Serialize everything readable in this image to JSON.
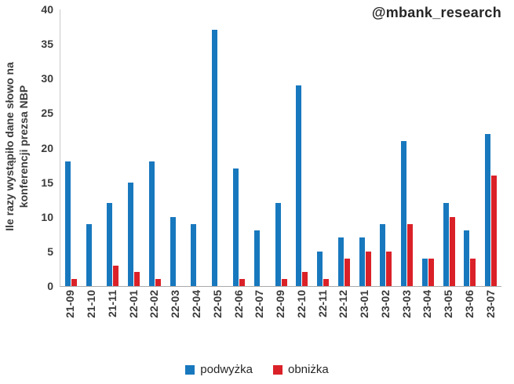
{
  "watermark": "@mbank_research",
  "chart_data": {
    "type": "bar",
    "title": "",
    "xlabel": "",
    "ylabel": "Ile razy wystąpiło dane słowo na konferencji prezsa NBP",
    "ylabel_lines": [
      "Ile razy wystąpiło dane słowo na",
      "konferencji prezsa NBP"
    ],
    "ylim": [
      0,
      40
    ],
    "yticks": [
      0,
      5,
      10,
      15,
      20,
      25,
      30,
      35,
      40
    ],
    "grid": false,
    "legend_position": "bottom",
    "categories": [
      "21-09",
      "21-10",
      "21-11",
      "22-01",
      "22-02",
      "22-03",
      "22-04",
      "22-05",
      "22-06",
      "22-07",
      "22-09",
      "22-10",
      "22-11",
      "22-12",
      "23-01",
      "23-02",
      "23-03",
      "23-04",
      "23-05",
      "23-06",
      "23-07"
    ],
    "series": [
      {
        "name": "podwyżka",
        "color": "#1878BE",
        "values": [
          18,
          9,
          12,
          15,
          18,
          10,
          9,
          37,
          17,
          8,
          12,
          29,
          5,
          7,
          7,
          9,
          21,
          4,
          12,
          8,
          22
        ]
      },
      {
        "name": "obniżka",
        "color": "#DA2128",
        "values": [
          1,
          0,
          3,
          2,
          1,
          0,
          0,
          0,
          1,
          0,
          1,
          2,
          1,
          4,
          5,
          5,
          9,
          4,
          10,
          4,
          16
        ]
      }
    ]
  }
}
